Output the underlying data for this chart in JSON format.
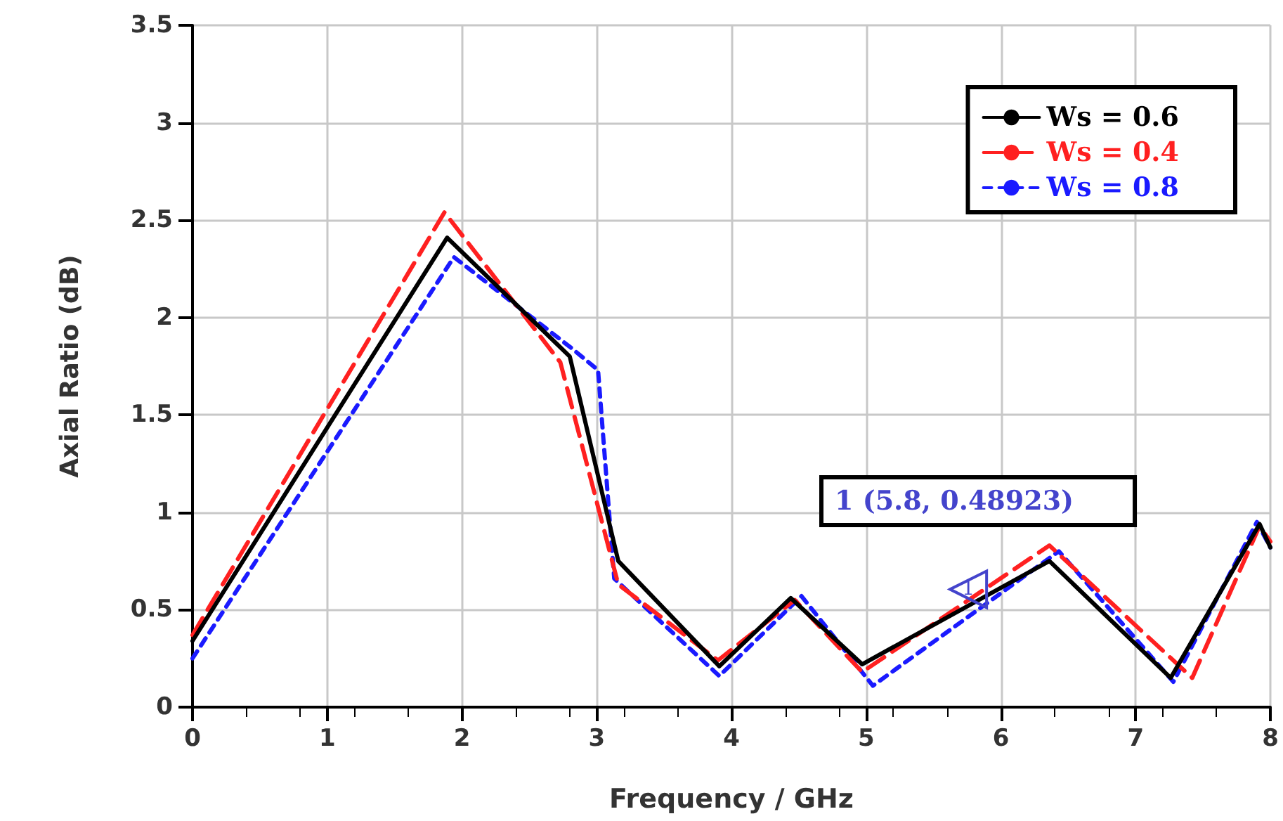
{
  "chart_data": {
    "type": "line",
    "xlabel": "Frequency / GHz",
    "ylabel": "Axial Ratio (dB)",
    "xlim": [
      0,
      8
    ],
    "xticks": [
      0,
      1,
      2,
      3,
      4,
      5,
      6,
      7,
      8
    ],
    "ylim": [
      0,
      3.5
    ],
    "yticks": [
      0,
      0.5,
      1,
      1.5,
      2,
      2.5,
      3,
      3.5
    ],
    "grid": true,
    "legend": "top right",
    "marker": "none",
    "series": [
      {
        "name": "Ws = 0.6",
        "color": "#000000",
        "line_style": "solid",
        "x": [
          0,
          1.89,
          2.8,
          3.16,
          3.91,
          4.44,
          4.97,
          6.36,
          7.26,
          7.92,
          8
        ],
        "values": [
          0.34,
          2.41,
          1.8,
          0.75,
          0.21,
          0.56,
          0.22,
          0.75,
          0.15,
          0.94,
          0.82
        ]
      },
      {
        "name": "Ws = 0.4",
        "color": "#ff2020",
        "line_style": "dashed",
        "x": [
          0,
          1.87,
          2.73,
          3.16,
          3.9,
          4.47,
          4.97,
          6.36,
          7.42,
          7.92,
          8
        ],
        "values": [
          0.37,
          2.54,
          1.77,
          0.63,
          0.24,
          0.55,
          0.18,
          0.83,
          0.15,
          0.93,
          0.85
        ]
      },
      {
        "name": "Ws = 0.8",
        "color": "#1a1aff",
        "line_style": "dotted",
        "x": [
          0,
          1.94,
          2.8,
          3.01,
          3.13,
          3.91,
          4.52,
          5.05,
          6.43,
          7.28,
          7.9,
          8
        ],
        "values": [
          0.25,
          2.31,
          1.85,
          1.73,
          0.66,
          0.16,
          0.57,
          0.11,
          0.8,
          0.13,
          0.95,
          0.82
        ]
      }
    ],
    "annotations": [
      {
        "text": "1",
        "x": 5.8,
        "y": 0.48923
      },
      "1 (5.8, 0.48923)"
    ]
  }
}
